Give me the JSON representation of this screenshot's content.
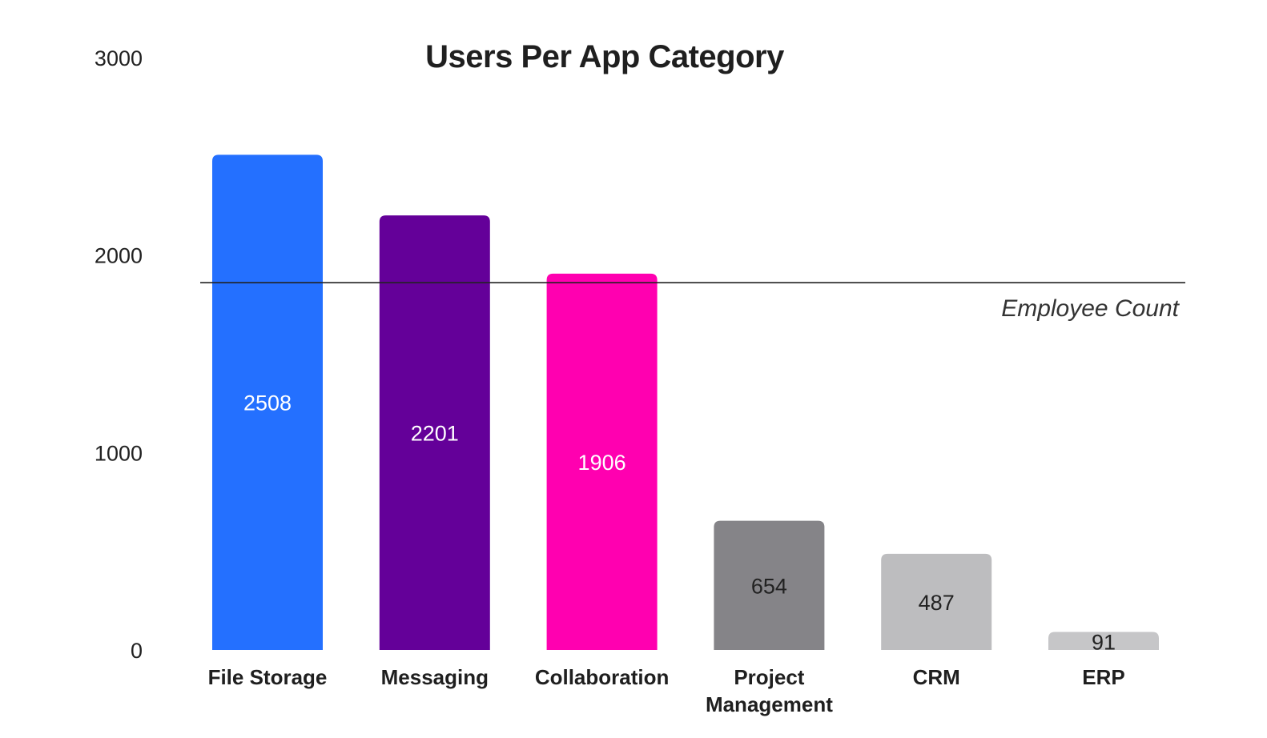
{
  "chart_data": {
    "type": "bar",
    "title": "Users Per App Category",
    "xlabel": "",
    "ylabel": "",
    "categories": [
      "File Storage",
      "Messaging",
      "Collaboration",
      "Project Management",
      "CRM",
      "ERP"
    ],
    "category_lines": [
      [
        "File Storage"
      ],
      [
        "Messaging"
      ],
      [
        "Collaboration"
      ],
      [
        "Project",
        "Management"
      ],
      [
        "CRM"
      ],
      [
        "ERP"
      ]
    ],
    "values": [
      2508,
      2201,
      1906,
      654,
      487,
      91
    ],
    "data_labels": [
      "2508",
      "2201",
      "1906",
      "654",
      "487",
      "91"
    ],
    "bar_colors": [
      "#2470ff",
      "#640099",
      "#ff00b0",
      "#858488",
      "#bdbdbf",
      "#c6c6c8"
    ],
    "label_colors": [
      "#ffffff",
      "#ffffff",
      "#ffffff",
      "#222222",
      "#222222",
      "#222222"
    ],
    "ylim": [
      0,
      3000
    ],
    "yticks": [
      0,
      1000,
      2000,
      3000
    ],
    "reference_line": {
      "value": 1860,
      "label": "Employee Count",
      "color": "#222222"
    },
    "grid": false,
    "legend": "none"
  }
}
